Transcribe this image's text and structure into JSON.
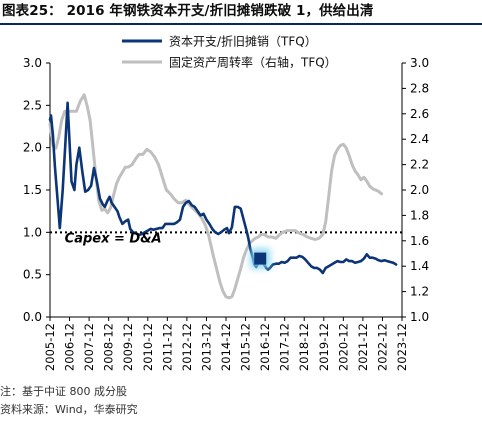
{
  "figure": {
    "title": "图表25：  2016 年钢铁资本开支/折旧摊销跌破 1，供给出清",
    "note": "注：基于中证 800 成分股",
    "source": "资料来源：Wind，华泰研究"
  },
  "chart_data": {
    "type": "line",
    "legend_position": "top-center",
    "grid": false,
    "x_tick_labels": [
      "2005-12",
      "2006-12",
      "2007-12",
      "2008-12",
      "2009-12",
      "2010-12",
      "2011-12",
      "2012-12",
      "2013-12",
      "2014-12",
      "2015-12",
      "2016-12",
      "2017-12",
      "2018-12",
      "2019-12",
      "2020-12",
      "2021-12",
      "2022-12",
      "2023-12"
    ],
    "y_left": {
      "min": 0.0,
      "max": 3.0,
      "ticks": [
        "0.0",
        "0.5",
        "1.0",
        "1.5",
        "2.0",
        "2.5",
        "3.0"
      ]
    },
    "y_right": {
      "min": 1.0,
      "max": 3.0,
      "ticks": [
        "1.0",
        "1.2",
        "1.4",
        "1.6",
        "1.8",
        "2.0",
        "2.2",
        "2.4",
        "2.6",
        "2.8",
        "3.0"
      ]
    },
    "reference_line": {
      "y": 1.0,
      "axis": "left",
      "style": "dotted"
    },
    "annotation": {
      "text": "Capex = D&A",
      "x": 2006.7,
      "y": 0.94
    },
    "highlight_marker": {
      "x": 2016.7,
      "y": 0.69,
      "axis": "left",
      "color": "#0b3576",
      "glow": "#7fd3f2"
    },
    "series": [
      {
        "name": "资本开支/折旧摊销（TFQ）",
        "axis": "left",
        "color": "#0b3576",
        "points": [
          [
            2005.95,
            2.33
          ],
          [
            2006.0,
            2.38
          ],
          [
            2006.1,
            2.15
          ],
          [
            2006.2,
            1.78
          ],
          [
            2006.35,
            1.35
          ],
          [
            2006.45,
            1.05
          ],
          [
            2006.6,
            1.5
          ],
          [
            2006.75,
            2.1
          ],
          [
            2006.85,
            2.53
          ],
          [
            2006.95,
            2.05
          ],
          [
            2007.05,
            1.6
          ],
          [
            2007.2,
            1.5
          ],
          [
            2007.3,
            1.8
          ],
          [
            2007.45,
            2.0
          ],
          [
            2007.6,
            1.72
          ],
          [
            2007.75,
            1.48
          ],
          [
            2007.9,
            1.5
          ],
          [
            2008.05,
            1.55
          ],
          [
            2008.2,
            1.76
          ],
          [
            2008.35,
            1.6
          ],
          [
            2008.5,
            1.4
          ],
          [
            2008.65,
            1.33
          ],
          [
            2008.75,
            1.3
          ],
          [
            2008.9,
            1.38
          ],
          [
            2009.0,
            1.42
          ],
          [
            2009.1,
            1.35
          ],
          [
            2009.25,
            1.3
          ],
          [
            2009.4,
            1.25
          ],
          [
            2009.5,
            1.18
          ],
          [
            2009.65,
            1.1
          ],
          [
            2009.8,
            1.13
          ],
          [
            2009.95,
            1.15
          ],
          [
            2010.05,
            1.04
          ],
          [
            2010.2,
            1.0
          ],
          [
            2010.35,
            0.99
          ],
          [
            2010.5,
            0.97
          ],
          [
            2010.65,
            0.98
          ],
          [
            2010.8,
            1.0
          ],
          [
            2010.95,
            1.02
          ],
          [
            2011.1,
            1.04
          ],
          [
            2011.25,
            1.03
          ],
          [
            2011.4,
            1.04
          ],
          [
            2011.55,
            1.05
          ],
          [
            2011.7,
            1.05
          ],
          [
            2011.85,
            1.1
          ],
          [
            2012.0,
            1.1
          ],
          [
            2012.15,
            1.1
          ],
          [
            2012.3,
            1.1
          ],
          [
            2012.45,
            1.12
          ],
          [
            2012.6,
            1.15
          ],
          [
            2012.75,
            1.3
          ],
          [
            2012.9,
            1.35
          ],
          [
            2013.05,
            1.37
          ],
          [
            2013.2,
            1.32
          ],
          [
            2013.35,
            1.3
          ],
          [
            2013.5,
            1.25
          ],
          [
            2013.65,
            1.2
          ],
          [
            2013.8,
            1.22
          ],
          [
            2013.95,
            1.15
          ],
          [
            2014.1,
            1.1
          ],
          [
            2014.25,
            1.04
          ],
          [
            2014.4,
            1.0
          ],
          [
            2014.55,
            0.98
          ],
          [
            2014.7,
            1.0
          ],
          [
            2014.85,
            1.03
          ],
          [
            2015.0,
            1.05
          ],
          [
            2015.1,
            0.99
          ],
          [
            2015.25,
            1.06
          ],
          [
            2015.4,
            1.3
          ],
          [
            2015.55,
            1.3
          ],
          [
            2015.7,
            1.28
          ],
          [
            2015.85,
            1.15
          ],
          [
            2016.0,
            1.02
          ],
          [
            2016.1,
            0.92
          ],
          [
            2016.2,
            0.8
          ],
          [
            2016.3,
            0.72
          ],
          [
            2016.4,
            0.62
          ],
          [
            2016.5,
            0.59
          ],
          [
            2016.6,
            0.64
          ],
          [
            2016.7,
            0.69
          ],
          [
            2016.8,
            0.67
          ],
          [
            2016.9,
            0.62
          ],
          [
            2017.0,
            0.58
          ],
          [
            2017.1,
            0.56
          ],
          [
            2017.2,
            0.58
          ],
          [
            2017.35,
            0.62
          ],
          [
            2017.5,
            0.63
          ],
          [
            2017.65,
            0.63
          ],
          [
            2017.8,
            0.65
          ],
          [
            2017.95,
            0.64
          ],
          [
            2018.1,
            0.66
          ],
          [
            2018.25,
            0.7
          ],
          [
            2018.4,
            0.7
          ],
          [
            2018.55,
            0.7
          ],
          [
            2018.7,
            0.72
          ],
          [
            2018.85,
            0.71
          ],
          [
            2019.0,
            0.68
          ],
          [
            2019.15,
            0.64
          ],
          [
            2019.3,
            0.6
          ],
          [
            2019.45,
            0.58
          ],
          [
            2019.6,
            0.58
          ],
          [
            2019.75,
            0.56
          ],
          [
            2019.9,
            0.52
          ],
          [
            2020.05,
            0.58
          ],
          [
            2020.2,
            0.6
          ],
          [
            2020.35,
            0.62
          ],
          [
            2020.5,
            0.64
          ],
          [
            2020.65,
            0.66
          ],
          [
            2020.8,
            0.65
          ],
          [
            2020.95,
            0.65
          ],
          [
            2021.1,
            0.68
          ],
          [
            2021.25,
            0.66
          ],
          [
            2021.4,
            0.66
          ],
          [
            2021.55,
            0.64
          ],
          [
            2021.7,
            0.65
          ],
          [
            2021.85,
            0.66
          ],
          [
            2022.0,
            0.69
          ],
          [
            2022.15,
            0.74
          ],
          [
            2022.3,
            0.7
          ],
          [
            2022.45,
            0.7
          ],
          [
            2022.6,
            0.69
          ],
          [
            2022.75,
            0.67
          ],
          [
            2022.9,
            0.66
          ],
          [
            2023.05,
            0.67
          ],
          [
            2023.2,
            0.66
          ],
          [
            2023.35,
            0.65
          ],
          [
            2023.5,
            0.64
          ],
          [
            2023.65,
            0.62
          ]
        ]
      },
      {
        "name": "固定资产周转率（右轴，TFQ）",
        "axis": "right",
        "color": "#bfbfbf",
        "points": [
          [
            2005.95,
            2.52
          ],
          [
            2006.1,
            2.35
          ],
          [
            2006.25,
            2.33
          ],
          [
            2006.4,
            2.42
          ],
          [
            2006.55,
            2.55
          ],
          [
            2006.7,
            2.62
          ],
          [
            2006.9,
            2.62
          ],
          [
            2007.1,
            2.62
          ],
          [
            2007.3,
            2.62
          ],
          [
            2007.5,
            2.7
          ],
          [
            2007.7,
            2.75
          ],
          [
            2007.85,
            2.66
          ],
          [
            2008.0,
            2.55
          ],
          [
            2008.15,
            2.33
          ],
          [
            2008.3,
            2.1
          ],
          [
            2008.45,
            1.91
          ],
          [
            2008.6,
            1.84
          ],
          [
            2008.75,
            1.85
          ],
          [
            2008.9,
            1.82
          ],
          [
            2009.05,
            1.86
          ],
          [
            2009.2,
            1.96
          ],
          [
            2009.35,
            2.05
          ],
          [
            2009.5,
            2.1
          ],
          [
            2009.65,
            2.14
          ],
          [
            2009.8,
            2.18
          ],
          [
            2009.95,
            2.18
          ],
          [
            2010.15,
            2.2
          ],
          [
            2010.35,
            2.25
          ],
          [
            2010.5,
            2.28
          ],
          [
            2010.7,
            2.28
          ],
          [
            2010.9,
            2.32
          ],
          [
            2011.1,
            2.3
          ],
          [
            2011.3,
            2.26
          ],
          [
            2011.5,
            2.2
          ],
          [
            2011.7,
            2.1
          ],
          [
            2011.9,
            2.0
          ],
          [
            2012.1,
            1.97
          ],
          [
            2012.3,
            1.93
          ],
          [
            2012.5,
            1.9
          ],
          [
            2012.7,
            1.9
          ],
          [
            2012.9,
            1.92
          ],
          [
            2013.1,
            1.88
          ],
          [
            2013.3,
            1.85
          ],
          [
            2013.5,
            1.82
          ],
          [
            2013.7,
            1.78
          ],
          [
            2013.9,
            1.72
          ],
          [
            2014.05,
            1.65
          ],
          [
            2014.2,
            1.55
          ],
          [
            2014.35,
            1.45
          ],
          [
            2014.5,
            1.36
          ],
          [
            2014.65,
            1.27
          ],
          [
            2014.8,
            1.2
          ],
          [
            2014.95,
            1.16
          ],
          [
            2015.1,
            1.15
          ],
          [
            2015.25,
            1.16
          ],
          [
            2015.4,
            1.22
          ],
          [
            2015.55,
            1.3
          ],
          [
            2015.7,
            1.38
          ],
          [
            2015.85,
            1.47
          ],
          [
            2016.0,
            1.53
          ],
          [
            2016.15,
            1.58
          ],
          [
            2016.3,
            1.6
          ],
          [
            2016.45,
            1.62
          ],
          [
            2016.6,
            1.63
          ],
          [
            2016.75,
            1.65
          ],
          [
            2016.9,
            1.65
          ],
          [
            2017.1,
            1.63
          ],
          [
            2017.3,
            1.63
          ],
          [
            2017.5,
            1.62
          ],
          [
            2017.7,
            1.65
          ],
          [
            2017.9,
            1.67
          ],
          [
            2018.1,
            1.68
          ],
          [
            2018.3,
            1.68
          ],
          [
            2018.5,
            1.68
          ],
          [
            2018.7,
            1.66
          ],
          [
            2018.9,
            1.65
          ],
          [
            2019.1,
            1.63
          ],
          [
            2019.3,
            1.62
          ],
          [
            2019.5,
            1.61
          ],
          [
            2019.7,
            1.62
          ],
          [
            2019.9,
            1.65
          ],
          [
            2020.05,
            1.75
          ],
          [
            2020.2,
            1.95
          ],
          [
            2020.35,
            2.15
          ],
          [
            2020.5,
            2.27
          ],
          [
            2020.65,
            2.32
          ],
          [
            2020.8,
            2.35
          ],
          [
            2020.95,
            2.36
          ],
          [
            2021.1,
            2.33
          ],
          [
            2021.25,
            2.27
          ],
          [
            2021.4,
            2.2
          ],
          [
            2021.55,
            2.15
          ],
          [
            2021.7,
            2.12
          ],
          [
            2021.85,
            2.08
          ],
          [
            2022.0,
            2.1
          ],
          [
            2022.15,
            2.07
          ],
          [
            2022.3,
            2.03
          ],
          [
            2022.45,
            2.01
          ],
          [
            2022.6,
            2.0
          ],
          [
            2022.75,
            1.99
          ],
          [
            2022.9,
            1.97
          ]
        ]
      }
    ]
  }
}
